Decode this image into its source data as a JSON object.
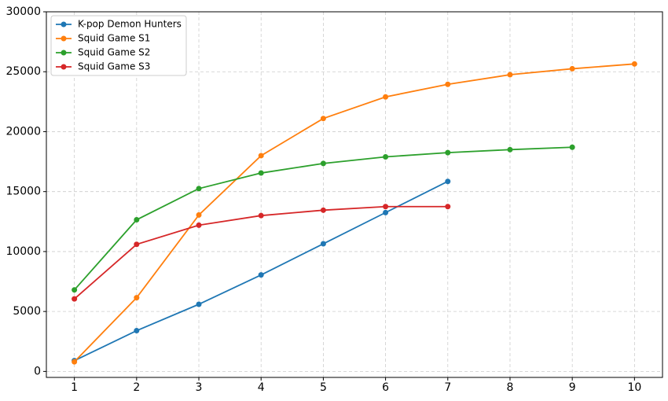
{
  "chart_data": {
    "type": "line",
    "x": [
      1,
      2,
      3,
      4,
      5,
      6,
      7,
      8,
      9,
      10
    ],
    "series": [
      {
        "name": "K-pop Demon Hunters",
        "color": "#1f77b4",
        "values": [
          900,
          3400,
          5600,
          8050,
          10650,
          13250,
          15850,
          null,
          null,
          null
        ]
      },
      {
        "name": "Squid Game S1",
        "color": "#ff7f0e",
        "values": [
          800,
          6150,
          13050,
          18000,
          21100,
          22900,
          23950,
          24750,
          25250,
          25650
        ]
      },
      {
        "name": "Squid Game S2",
        "color": "#2ca02c",
        "values": [
          6800,
          12650,
          15250,
          16550,
          17350,
          17900,
          18250,
          18500,
          18700,
          null
        ]
      },
      {
        "name": "Squid Game S3",
        "color": "#d62728",
        "values": [
          6050,
          10600,
          12200,
          13000,
          13450,
          13750,
          13750,
          null,
          null,
          null
        ]
      }
    ],
    "xlim": [
      0.55,
      10.45
    ],
    "xticks": [
      1,
      2,
      3,
      4,
      5,
      6,
      7,
      8,
      9,
      10
    ],
    "ylim": [
      -500,
      30000
    ],
    "yticks": [
      0,
      5000,
      10000,
      15000,
      20000,
      25000,
      30000
    ],
    "grid": true,
    "legend": "upper-left"
  }
}
